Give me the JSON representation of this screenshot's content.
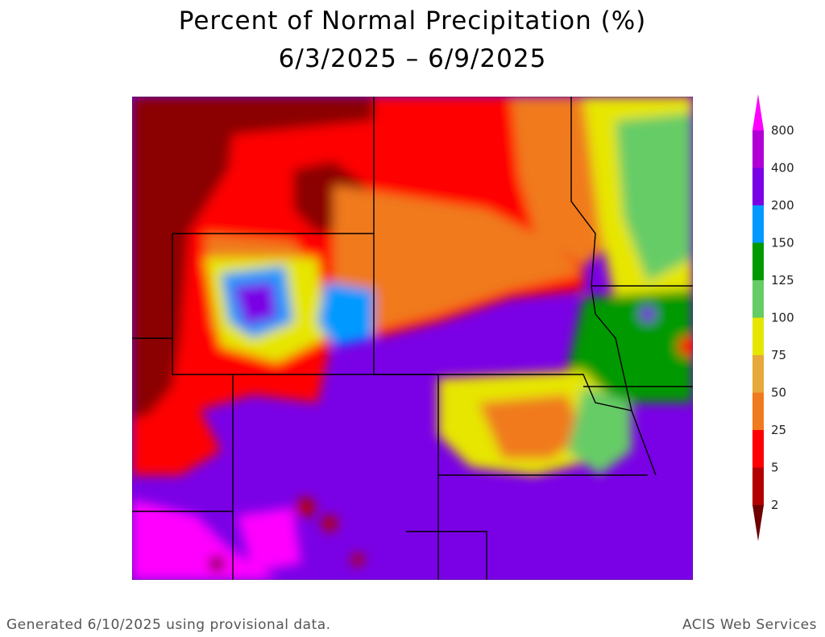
{
  "title": "Percent of Normal Precipitation (%)",
  "date_range": "6/3/2025 – 6/9/2025",
  "footer_left": "Generated 6/10/2025 using provisional data.",
  "footer_right": "ACIS Web Services",
  "legend": {
    "bins": [
      {
        "label": "2",
        "color": "#6e0000"
      },
      {
        "label": "5",
        "color": "#b30000"
      },
      {
        "label": "25",
        "color": "#ff0000"
      },
      {
        "label": "50",
        "color": "#f07a1e"
      },
      {
        "label": "75",
        "color": "#e6a93a"
      },
      {
        "label": "100",
        "color": "#e6e600"
      },
      {
        "label": "125",
        "color": "#66cc66"
      },
      {
        "label": "150",
        "color": "#009900"
      },
      {
        "label": "200",
        "color": "#0099ff"
      },
      {
        "label": "400",
        "color": "#7a00e6"
      },
      {
        "label": "800",
        "color": "#b000d6"
      }
    ],
    "top_color": "#ff00ff",
    "bottom_color": "#6e0000"
  }
}
